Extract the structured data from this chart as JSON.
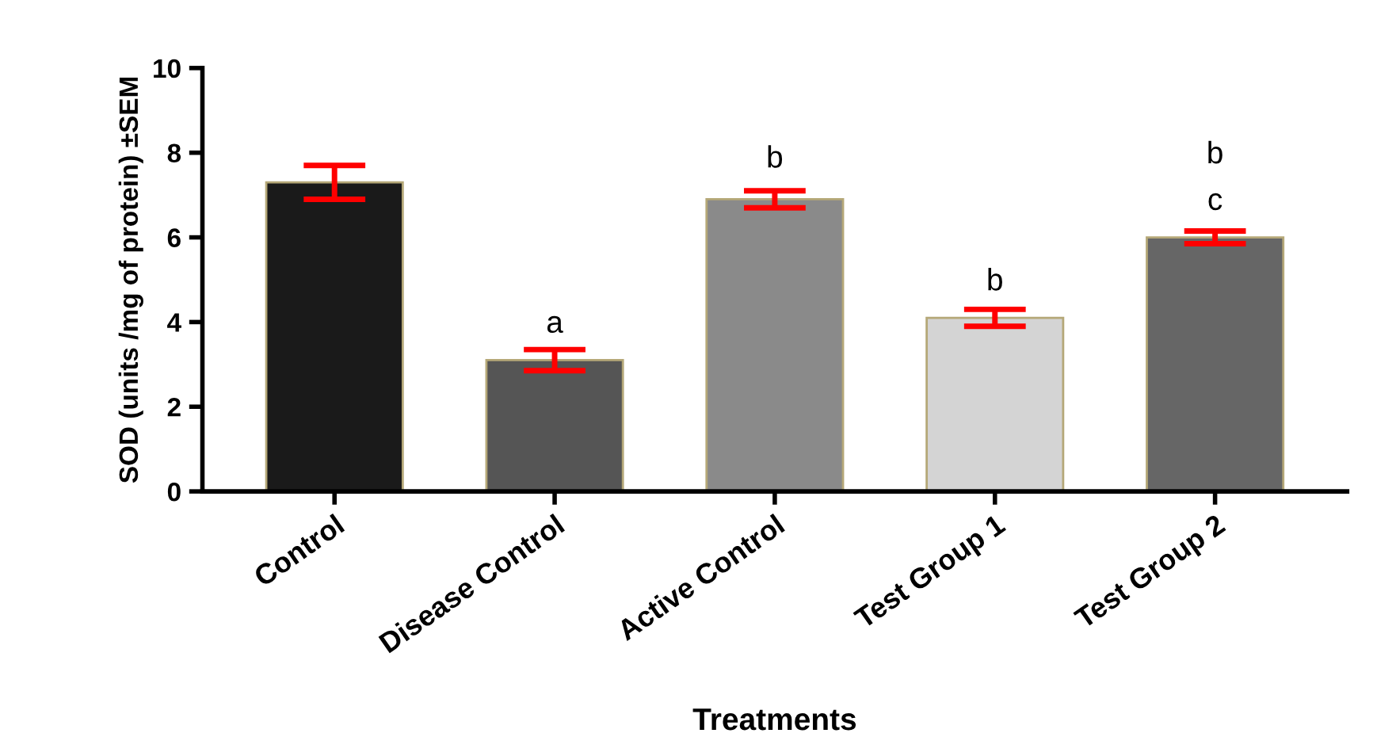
{
  "chart_data": {
    "type": "bar",
    "xlabel": "Treatments",
    "ylabel": "SOD (units /mg of protein) ±SEM",
    "categories": [
      "Control",
      "Disease Control",
      "Active Control",
      "Test Group 1",
      "Test Group 2"
    ],
    "values": [
      7.3,
      3.1,
      6.9,
      4.1,
      6.0
    ],
    "errors": [
      0.4,
      0.25,
      0.2,
      0.2,
      0.15
    ],
    "colors": [
      "#1a1a1a",
      "#555555",
      "#8a8a8a",
      "#d4d4d4",
      "#666666"
    ],
    "ylim": [
      0,
      10
    ],
    "yticks": [
      0,
      2,
      4,
      6,
      8,
      10
    ],
    "grid": false,
    "legend": false,
    "annotations": [
      "a",
      "b",
      "b",
      "c",
      "b"
    ]
  }
}
